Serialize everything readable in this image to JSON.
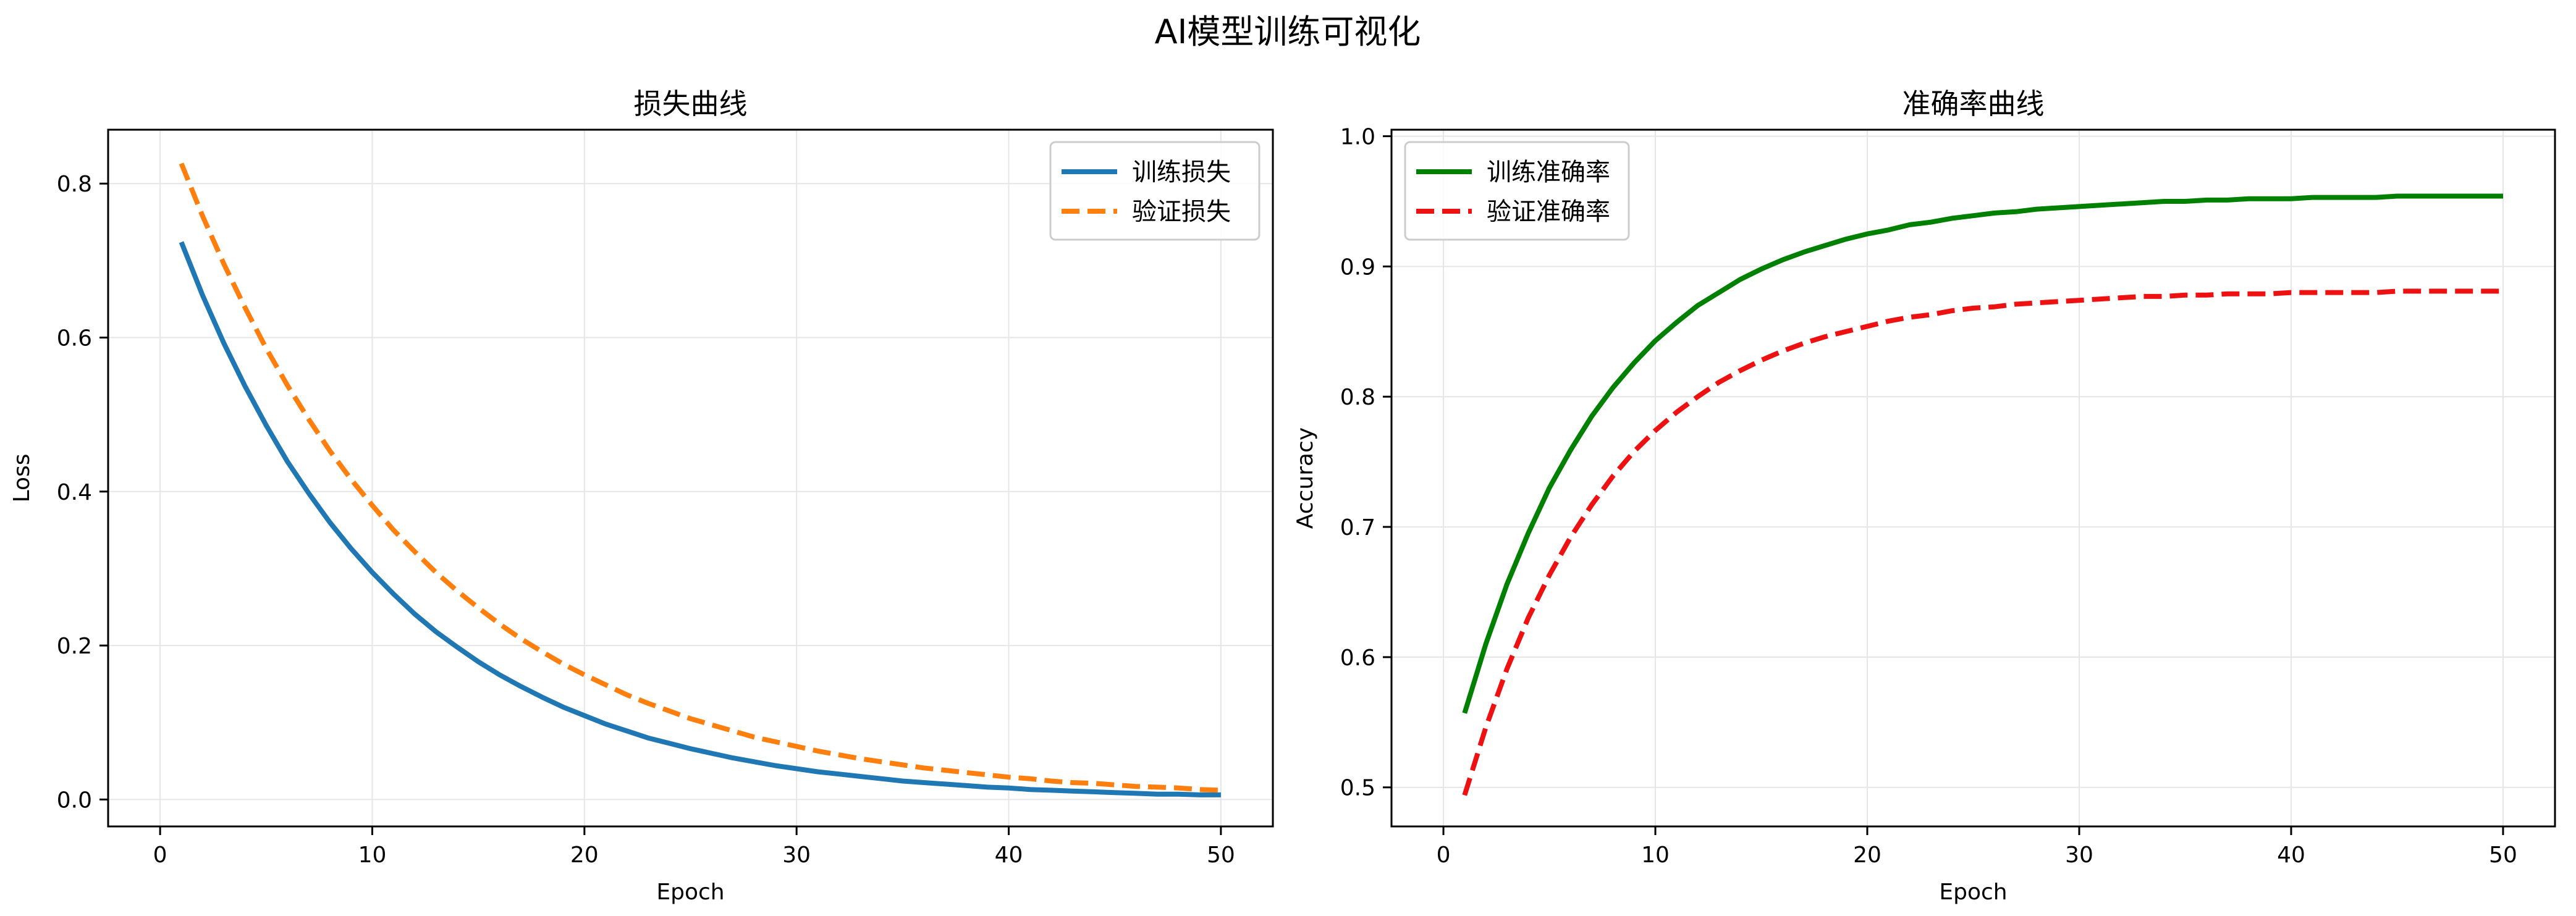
{
  "figure": {
    "title": "AI模型训练可视化"
  },
  "chart_data": [
    {
      "type": "line",
      "title": "损失曲线",
      "xlabel": "Epoch",
      "ylabel": "Loss",
      "xlim": [
        -2.45,
        52.45
      ],
      "ylim": [
        -0.035,
        0.87
      ],
      "xticks": [
        0,
        10,
        20,
        30,
        40,
        50
      ],
      "yticks": [
        0.0,
        0.2,
        0.4,
        0.6,
        0.8
      ],
      "ytick_labels": [
        "0.0",
        "0.2",
        "0.4",
        "0.6",
        "0.8"
      ],
      "grid": true,
      "legend_position": "upper right",
      "series": [
        {
          "name": "训练损失",
          "color": "#1f77b4",
          "style": "solid",
          "x": [
            1,
            2,
            3,
            4,
            5,
            6,
            7,
            8,
            9,
            10,
            11,
            12,
            13,
            14,
            15,
            16,
            17,
            18,
            19,
            20,
            21,
            22,
            23,
            24,
            25,
            26,
            27,
            28,
            29,
            30,
            31,
            32,
            33,
            34,
            35,
            36,
            37,
            38,
            39,
            40,
            41,
            42,
            43,
            44,
            45,
            46,
            47,
            48,
            49,
            50
          ],
          "y": [
            0.724,
            0.655,
            0.593,
            0.537,
            0.486,
            0.439,
            0.398,
            0.36,
            0.326,
            0.295,
            0.267,
            0.241,
            0.218,
            0.198,
            0.179,
            0.162,
            0.147,
            0.133,
            0.12,
            0.109,
            0.098,
            0.089,
            0.08,
            0.073,
            0.066,
            0.06,
            0.054,
            0.049,
            0.044,
            0.04,
            0.036,
            0.033,
            0.03,
            0.027,
            0.024,
            0.022,
            0.02,
            0.018,
            0.016,
            0.015,
            0.013,
            0.012,
            0.011,
            0.01,
            0.009,
            0.008,
            0.007,
            0.007,
            0.006,
            0.006
          ]
        },
        {
          "name": "验证损失",
          "color": "#ff7f0e",
          "style": "dashed",
          "x": [
            1,
            2,
            3,
            4,
            5,
            6,
            7,
            8,
            9,
            10,
            11,
            12,
            13,
            14,
            15,
            16,
            17,
            18,
            19,
            20,
            21,
            22,
            23,
            24,
            25,
            26,
            27,
            28,
            29,
            30,
            31,
            32,
            33,
            34,
            35,
            36,
            37,
            38,
            39,
            40,
            41,
            42,
            43,
            44,
            45,
            46,
            47,
            48,
            49,
            50
          ],
          "y": [
            0.826,
            0.758,
            0.696,
            0.639,
            0.586,
            0.538,
            0.494,
            0.453,
            0.416,
            0.382,
            0.35,
            0.322,
            0.295,
            0.271,
            0.249,
            0.228,
            0.209,
            0.192,
            0.176,
            0.162,
            0.149,
            0.136,
            0.125,
            0.115,
            0.105,
            0.097,
            0.089,
            0.081,
            0.075,
            0.069,
            0.063,
            0.058,
            0.053,
            0.049,
            0.045,
            0.041,
            0.038,
            0.035,
            0.032,
            0.029,
            0.027,
            0.024,
            0.022,
            0.021,
            0.019,
            0.017,
            0.016,
            0.015,
            0.013,
            0.012
          ]
        }
      ]
    },
    {
      "type": "line",
      "title": "准确率曲线",
      "xlabel": "Epoch",
      "ylabel": "Accuracy",
      "xlim": [
        -2.45,
        52.45
      ],
      "ylim": [
        0.47,
        1.005
      ],
      "xticks": [
        0,
        10,
        20,
        30,
        40,
        50
      ],
      "yticks": [
        0.5,
        0.6,
        0.7,
        0.8,
        0.9,
        1.0
      ],
      "ytick_labels": [
        "0.5",
        "0.6",
        "0.7",
        "0.8",
        "0.9",
        "1.0"
      ],
      "grid": true,
      "legend_position": "upper left",
      "series": [
        {
          "name": "训练准确率",
          "color": "#008000",
          "style": "solid",
          "x": [
            1,
            2,
            3,
            4,
            5,
            6,
            7,
            8,
            9,
            10,
            11,
            12,
            13,
            14,
            15,
            16,
            17,
            18,
            19,
            20,
            21,
            22,
            23,
            24,
            25,
            26,
            27,
            28,
            29,
            30,
            31,
            32,
            33,
            34,
            35,
            36,
            37,
            38,
            39,
            40,
            41,
            42,
            43,
            44,
            45,
            46,
            47,
            48,
            49,
            50
          ],
          "y": [
            0.557,
            0.61,
            0.656,
            0.695,
            0.73,
            0.759,
            0.785,
            0.807,
            0.826,
            0.843,
            0.857,
            0.87,
            0.88,
            0.89,
            0.898,
            0.905,
            0.911,
            0.916,
            0.921,
            0.925,
            0.928,
            0.932,
            0.934,
            0.937,
            0.939,
            0.941,
            0.942,
            0.944,
            0.945,
            0.946,
            0.947,
            0.948,
            0.949,
            0.95,
            0.95,
            0.951,
            0.951,
            0.952,
            0.952,
            0.952,
            0.953,
            0.953,
            0.953,
            0.953,
            0.954,
            0.954,
            0.954,
            0.954,
            0.954,
            0.954
          ]
        },
        {
          "name": "验证准确率",
          "color": "#ee1111",
          "style": "dashed",
          "x": [
            1,
            2,
            3,
            4,
            5,
            6,
            7,
            8,
            9,
            10,
            11,
            12,
            13,
            14,
            15,
            16,
            17,
            18,
            19,
            20,
            21,
            22,
            23,
            24,
            25,
            26,
            27,
            28,
            29,
            30,
            31,
            32,
            33,
            34,
            35,
            36,
            37,
            38,
            39,
            40,
            41,
            42,
            43,
            44,
            45,
            46,
            47,
            48,
            49,
            50
          ],
          "y": [
            0.494,
            0.546,
            0.591,
            0.63,
            0.663,
            0.692,
            0.717,
            0.739,
            0.758,
            0.774,
            0.788,
            0.8,
            0.811,
            0.82,
            0.828,
            0.835,
            0.841,
            0.846,
            0.85,
            0.854,
            0.858,
            0.861,
            0.863,
            0.866,
            0.868,
            0.869,
            0.871,
            0.872,
            0.873,
            0.874,
            0.875,
            0.876,
            0.877,
            0.877,
            0.878,
            0.878,
            0.879,
            0.879,
            0.879,
            0.88,
            0.88,
            0.88,
            0.88,
            0.88,
            0.881,
            0.881,
            0.881,
            0.881,
            0.881,
            0.881
          ]
        }
      ]
    }
  ]
}
